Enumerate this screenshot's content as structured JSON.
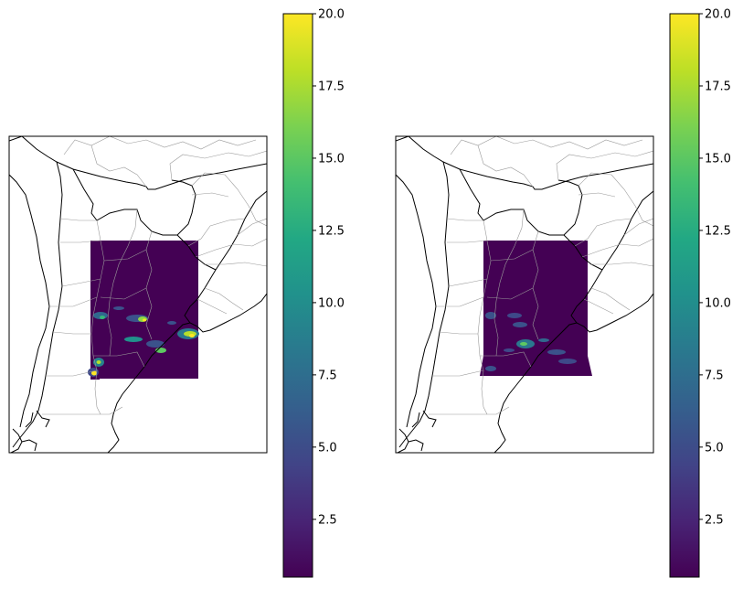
{
  "figure": {
    "panels": [
      {
        "id": "left-map"
      },
      {
        "id": "right-map"
      }
    ]
  },
  "colorbar": {
    "colormap": "viridis",
    "min": 0.5,
    "max": 20.0,
    "ticks": [
      "2.5",
      "5.0",
      "7.5",
      "10.0",
      "12.5",
      "15.0",
      "17.5",
      "20.0"
    ]
  },
  "colors": {
    "background_field": "#440154",
    "coastline": "#000000",
    "borders": "#9a9a9a"
  }
}
